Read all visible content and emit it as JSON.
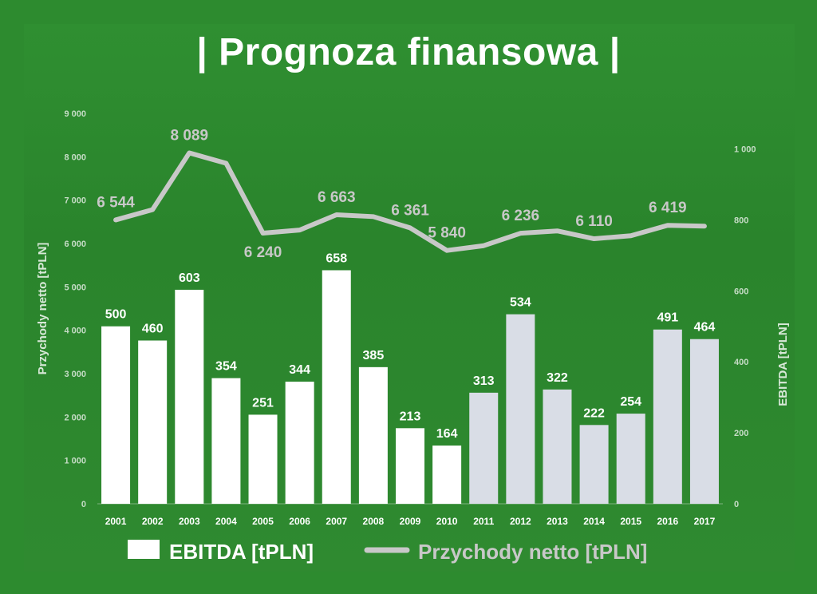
{
  "title": "| Prognoza finansowa |",
  "colors": {
    "background": "#2d8b2f",
    "bar_actual": "#ffffff",
    "bar_forecast": "#d9dde6",
    "line": "#c8c8c8"
  },
  "chart_data": {
    "type": "bar",
    "categories": [
      "2001",
      "2002",
      "2003",
      "2004",
      "2005",
      "2006",
      "2007",
      "2008",
      "2009",
      "2010",
      "2011",
      "2012",
      "2013",
      "2014",
      "2015",
      "2016",
      "2017"
    ],
    "series": [
      {
        "name": "EBITDA [tPLN]",
        "type": "bar",
        "axis": "right",
        "values": [
          500,
          460,
          603,
          354,
          251,
          344,
          658,
          385,
          213,
          164,
          313,
          534,
          322,
          222,
          254,
          491,
          464
        ],
        "labels": [
          "500",
          "460",
          "603",
          "354",
          "251",
          "344",
          "658",
          "385",
          "213",
          "164",
          "313",
          "534",
          "322",
          "222",
          "254",
          "491",
          "464"
        ]
      },
      {
        "name": "Przychody netto [tPLN]",
        "type": "line",
        "axis": "left",
        "values": [
          6544,
          6780,
          8089,
          7850,
          6240,
          6310,
          6663,
          6620,
          6361,
          5840,
          5950,
          6236,
          6290,
          6110,
          6180,
          6419,
          6400
        ],
        "labels": {
          "0": "6 544",
          "2": "8 089",
          "4": "6 240",
          "6": "6 663",
          "8": "6 361",
          "9": "5 840",
          "11": "6 236",
          "13": "6 110",
          "15": "6 419"
        }
      }
    ],
    "forecast_from_index": 10,
    "y_left": {
      "label": "Przychody netto [tPLN]",
      "ylim": [
        0,
        9000
      ],
      "ticks": [
        0,
        1000,
        2000,
        3000,
        4000,
        5000,
        6000,
        7000,
        8000,
        9000
      ],
      "tick_labels": [
        "0",
        "1 000",
        "2 000",
        "3 000",
        "4 000",
        "5 000",
        "6 000",
        "7 000",
        "8 000",
        "9 000"
      ]
    },
    "y_right": {
      "label": "EBITDA [tPLN]",
      "ylim": [
        0,
        1100
      ],
      "ticks": [
        0,
        200,
        400,
        600,
        800,
        1000
      ],
      "tick_labels": [
        "0",
        "200",
        "400",
        "600",
        "800",
        "1 000"
      ]
    },
    "legend": {
      "placement": "bottom",
      "items": [
        {
          "label": "EBITDA [tPLN]",
          "kind": "bar"
        },
        {
          "label": "Przychody netto [tPLN]",
          "kind": "line"
        }
      ]
    }
  }
}
